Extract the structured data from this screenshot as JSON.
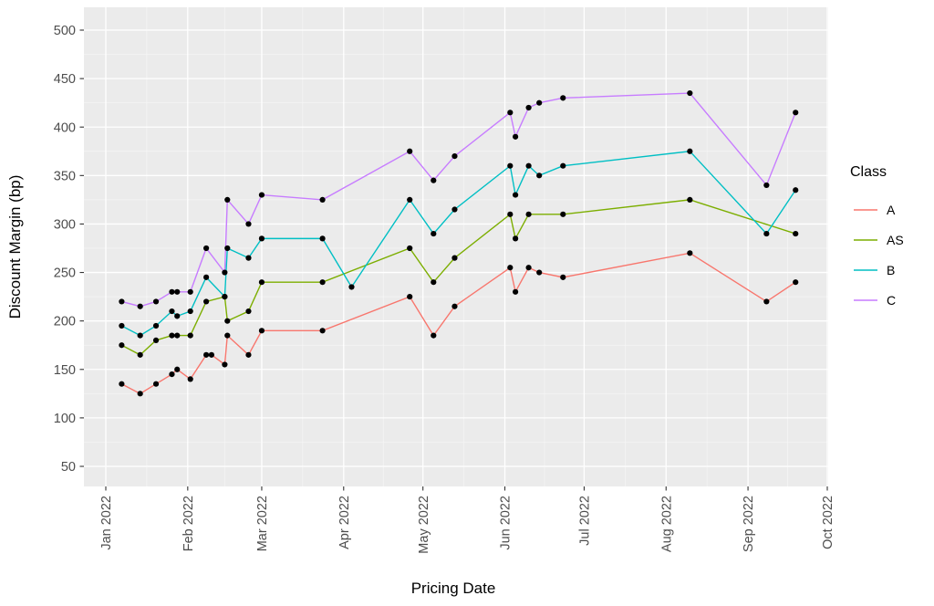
{
  "chart_data": {
    "type": "line",
    "title": "",
    "xlabel": "Pricing Date",
    "ylabel": "Discount Margin (bp)",
    "grid": true,
    "panel_background": "#EBEBEB",
    "gridline_color": "#FFFFFF",
    "tick_label_color": "#4D4D4D",
    "axis_title_color": "#000000",
    "point_color": "#000000",
    "ylim": [
      30,
      523
    ],
    "y_ticks": [
      50,
      100,
      150,
      200,
      250,
      300,
      350,
      400,
      450,
      500
    ],
    "x_ticks": [
      {
        "date": "2022-01-01",
        "label": "Jan 2022"
      },
      {
        "date": "2022-02-01",
        "label": "Feb 2022"
      },
      {
        "date": "2022-03-01",
        "label": "Mar 2022"
      },
      {
        "date": "2022-04-01",
        "label": "Apr 2022"
      },
      {
        "date": "2022-05-01",
        "label": "May 2022"
      },
      {
        "date": "2022-06-01",
        "label": "Jun 2022"
      },
      {
        "date": "2022-07-01",
        "label": "Jul 2022"
      },
      {
        "date": "2022-08-01",
        "label": "Aug 2022"
      },
      {
        "date": "2022-09-01",
        "label": "Sep 2022"
      },
      {
        "date": "2022-10-01",
        "label": "Oct 2022"
      }
    ],
    "legend": {
      "title": "Class",
      "position": "right",
      "entries": [
        {
          "label": "A",
          "color": "#F8766D"
        },
        {
          "label": "AS",
          "color": "#7CAE00"
        },
        {
          "label": "B",
          "color": "#00BFC4"
        },
        {
          "label": "C",
          "color": "#C77CFF"
        }
      ]
    },
    "series": [
      {
        "name": "A",
        "color": "#F8766D",
        "points": [
          [
            "2022-01-07",
            135
          ],
          [
            "2022-01-14",
            125
          ],
          [
            "2022-01-20",
            135
          ],
          [
            "2022-01-26",
            145
          ],
          [
            "2022-01-28",
            150
          ],
          [
            "2022-02-02",
            140
          ],
          [
            "2022-02-08",
            165
          ],
          [
            "2022-02-10",
            165
          ],
          [
            "2022-02-15",
            155
          ],
          [
            "2022-02-16",
            185
          ],
          [
            "2022-02-24",
            165
          ],
          [
            "2022-03-01",
            190
          ],
          [
            "2022-03-24",
            190
          ],
          [
            "2022-04-26",
            225
          ],
          [
            "2022-05-05",
            185
          ],
          [
            "2022-05-13",
            215
          ],
          [
            "2022-06-03",
            255
          ],
          [
            "2022-06-05",
            230
          ],
          [
            "2022-06-10",
            255
          ],
          [
            "2022-06-14",
            250
          ],
          [
            "2022-06-23",
            245
          ],
          [
            "2022-08-10",
            270
          ],
          [
            "2022-09-08",
            220
          ],
          [
            "2022-09-19",
            240
          ]
        ]
      },
      {
        "name": "AS",
        "color": "#7CAE00",
        "points": [
          [
            "2022-01-07",
            175
          ],
          [
            "2022-01-14",
            165
          ],
          [
            "2022-01-20",
            180
          ],
          [
            "2022-01-26",
            185
          ],
          [
            "2022-01-28",
            185
          ],
          [
            "2022-02-02",
            185
          ],
          [
            "2022-02-08",
            220
          ],
          [
            "2022-02-15",
            225
          ],
          [
            "2022-02-16",
            200
          ],
          [
            "2022-02-24",
            210
          ],
          [
            "2022-03-01",
            240
          ],
          [
            "2022-03-24",
            240
          ],
          [
            "2022-04-26",
            275
          ],
          [
            "2022-05-05",
            240
          ],
          [
            "2022-05-13",
            265
          ],
          [
            "2022-06-03",
            310
          ],
          [
            "2022-06-05",
            285
          ],
          [
            "2022-06-10",
            310
          ],
          [
            "2022-06-23",
            310
          ],
          [
            "2022-08-10",
            325
          ],
          [
            "2022-09-19",
            290
          ]
        ]
      },
      {
        "name": "B",
        "color": "#00BFC4",
        "points": [
          [
            "2022-01-07",
            195
          ],
          [
            "2022-01-14",
            185
          ],
          [
            "2022-01-20",
            195
          ],
          [
            "2022-01-26",
            210
          ],
          [
            "2022-01-28",
            205
          ],
          [
            "2022-02-02",
            210
          ],
          [
            "2022-02-08",
            245
          ],
          [
            "2022-02-15",
            225
          ],
          [
            "2022-02-16",
            275
          ],
          [
            "2022-02-24",
            265
          ],
          [
            "2022-03-01",
            285
          ],
          [
            "2022-03-24",
            285
          ],
          [
            "2022-04-04",
            235
          ],
          [
            "2022-04-26",
            325
          ],
          [
            "2022-05-05",
            290
          ],
          [
            "2022-05-13",
            315
          ],
          [
            "2022-06-03",
            360
          ],
          [
            "2022-06-05",
            330
          ],
          [
            "2022-06-10",
            360
          ],
          [
            "2022-06-14",
            350
          ],
          [
            "2022-06-23",
            360
          ],
          [
            "2022-08-10",
            375
          ],
          [
            "2022-09-08",
            290
          ],
          [
            "2022-09-19",
            335
          ]
        ]
      },
      {
        "name": "C",
        "color": "#C77CFF",
        "points": [
          [
            "2022-01-07",
            220
          ],
          [
            "2022-01-14",
            215
          ],
          [
            "2022-01-20",
            220
          ],
          [
            "2022-01-26",
            230
          ],
          [
            "2022-01-28",
            230
          ],
          [
            "2022-02-02",
            230
          ],
          [
            "2022-02-08",
            275
          ],
          [
            "2022-02-15",
            250
          ],
          [
            "2022-02-16",
            325
          ],
          [
            "2022-02-24",
            300
          ],
          [
            "2022-03-01",
            330
          ],
          [
            "2022-03-24",
            325
          ],
          [
            "2022-04-26",
            375
          ],
          [
            "2022-05-05",
            345
          ],
          [
            "2022-05-13",
            370
          ],
          [
            "2022-06-03",
            415
          ],
          [
            "2022-06-05",
            390
          ],
          [
            "2022-06-10",
            420
          ],
          [
            "2022-06-14",
            425
          ],
          [
            "2022-06-23",
            430
          ],
          [
            "2022-08-10",
            435
          ],
          [
            "2022-09-08",
            340
          ],
          [
            "2022-09-19",
            415
          ]
        ]
      }
    ]
  }
}
